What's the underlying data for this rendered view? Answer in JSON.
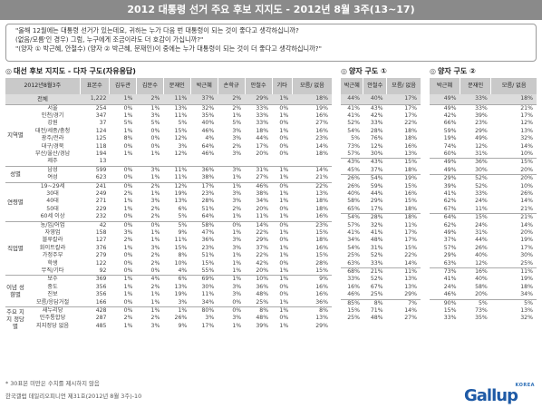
{
  "header": {
    "title": "2012 대통령 선거 주요 후보 지지도 - 2012년 8월 3주(13~17)"
  },
  "question": {
    "line1": "\"올해 12월에는 대통령 선거가 있는데요, 귀하는 누가 다음 번 대통령이 되는 것이 좋다고 생각하십니까?",
    "line2": "(없음/모름'인 경우) 그럼, 누구에게 조금이라도 더 호감이 가십니까?\"",
    "line3": "\"(양자 ① 박근혜, 안철수) (양자 ② 박근혜, 문재인)이 중에는 누가 대통령이 되는 것이 더 좋다고 생각하십니까?\""
  },
  "sections": {
    "multi": "대선 후보 지지도 - 다자 구도(자유응답)",
    "pair1": "양자 구도 ①",
    "pair2": "양자 구도 ②",
    "icon": "◎"
  },
  "table": {
    "corner": "2012년8월3주",
    "n_header": "표본수",
    "multi_headers": [
      "김두관",
      "김문수",
      "문재인",
      "박근혜",
      "손학규",
      "안철수",
      "기타",
      "모름/ 없음"
    ],
    "pair1_headers": [
      "박근혜",
      "안철수",
      "모름/ 없음"
    ],
    "pair2_headers": [
      "박근혜",
      "문재인",
      "모름/ 없음"
    ],
    "total": {
      "label": "전체",
      "n": "1,222",
      "multi": [
        "1%",
        "2%",
        "11%",
        "37%",
        "2%",
        "29%",
        "1%",
        "18%"
      ],
      "p1": [
        "44%",
        "40%",
        "17%"
      ],
      "p2": [
        "49%",
        "33%",
        "18%"
      ]
    },
    "groups": [
      {
        "name": "지역별",
        "rows": [
          {
            "label": "서울",
            "n": "254",
            "multi": [
              "0%",
              "1%",
              "13%",
              "32%",
              "2%",
              "33%",
              "0%",
              "19%"
            ],
            "p1": [
              "41%",
              "43%",
              "17%"
            ],
            "p2": [
              "49%",
              "33%",
              "21%"
            ]
          },
          {
            "label": "인천/경기",
            "n": "347",
            "multi": [
              "1%",
              "3%",
              "11%",
              "35%",
              "1%",
              "33%",
              "1%",
              "16%"
            ],
            "p1": [
              "41%",
              "42%",
              "17%"
            ],
            "p2": [
              "42%",
              "39%",
              "17%"
            ]
          },
          {
            "label": "강원",
            "n": "37",
            "multi": [
              "5%",
              "5%",
              "5%",
              "40%",
              "5%",
              "33%",
              "0%",
              "27%"
            ],
            "p1": [
              "52%",
              "33%",
              "22%"
            ],
            "p2": [
              "66%",
              "23%",
              "12%"
            ]
          },
          {
            "label": "대전/세종/충청",
            "n": "124",
            "multi": [
              "1%",
              "0%",
              "15%",
              "46%",
              "3%",
              "18%",
              "1%",
              "16%"
            ],
            "p1": [
              "54%",
              "28%",
              "18%"
            ],
            "p2": [
              "59%",
              "29%",
              "13%"
            ]
          },
          {
            "label": "광주/전라",
            "n": "125",
            "multi": [
              "8%",
              "0%",
              "12%",
              "4%",
              "3%",
              "44%",
              "0%",
              "23%"
            ],
            "p1": [
              "5%",
              "76%",
              "18%"
            ],
            "p2": [
              "19%",
              "49%",
              "32%"
            ]
          },
          {
            "label": "대구/경북",
            "n": "118",
            "multi": [
              "0%",
              "0%",
              "3%",
              "64%",
              "2%",
              "17%",
              "0%",
              "14%"
            ],
            "p1": [
              "73%",
              "12%",
              "16%"
            ],
            "p2": [
              "74%",
              "12%",
              "14%"
            ]
          },
          {
            "label": "부산/울산/경남",
            "n": "194",
            "multi": [
              "1%",
              "1%",
              "12%",
              "46%",
              "3%",
              "20%",
              "0%",
              "18%"
            ],
            "p1": [
              "57%",
              "30%",
              "13%"
            ],
            "p2": [
              "60%",
              "31%",
              "10%"
            ]
          },
          {
            "label": "제주",
            "n": "13",
            "multi": [
              "",
              "",
              "",
              "",
              "",
              "",
              "",
              ""
            ],
            "p1": [
              "",
              "",
              ""
            ],
            "p2": [
              "",
              "",
              ""
            ]
          }
        ]
      },
      {
        "name": "성별",
        "rows": [
          {
            "label": "남성",
            "n": "599",
            "multi": [
              "0%",
              "3%",
              "11%",
              "36%",
              "3%",
              "31%",
              "1%",
              "14%"
            ],
            "p1": [
              "43%",
              "43%",
              "15%"
            ],
            "p2": [
              "49%",
              "36%",
              "15%"
            ]
          },
          {
            "label": "여성",
            "n": "623",
            "multi": [
              "0%",
              "1%",
              "11%",
              "38%",
              "1%",
              "27%",
              "1%",
              "21%"
            ],
            "p1": [
              "45%",
              "37%",
              "18%"
            ],
            "p2": [
              "49%",
              "30%",
              "20%"
            ]
          }
        ]
      },
      {
        "name": "연령별",
        "rows": [
          {
            "label": "19~29세",
            "n": "241",
            "multi": [
              "0%",
              "2%",
              "12%",
              "17%",
              "1%",
              "46%",
              "0%",
              "22%"
            ],
            "p1": [
              "26%",
              "54%",
              "19%"
            ],
            "p2": [
              "29%",
              "52%",
              "20%"
            ]
          },
          {
            "label": "30대",
            "n": "249",
            "multi": [
              "2%",
              "1%",
              "19%",
              "23%",
              "3%",
              "38%",
              "1%",
              "13%"
            ],
            "p1": [
              "26%",
              "59%",
              "15%"
            ],
            "p2": [
              "39%",
              "52%",
              "10%"
            ]
          },
          {
            "label": "40대",
            "n": "271",
            "multi": [
              "1%",
              "3%",
              "13%",
              "28%",
              "3%",
              "34%",
              "1%",
              "18%"
            ],
            "p1": [
              "40%",
              "44%",
              "16%"
            ],
            "p2": [
              "41%",
              "33%",
              "26%"
            ]
          },
          {
            "label": "50대",
            "n": "229",
            "multi": [
              "1%",
              "2%",
              "6%",
              "51%",
              "2%",
              "20%",
              "0%",
              "18%"
            ],
            "p1": [
              "58%",
              "29%",
              "15%"
            ],
            "p2": [
              "62%",
              "24%",
              "14%"
            ]
          },
          {
            "label": "60세 이상",
            "n": "232",
            "multi": [
              "0%",
              "2%",
              "5%",
              "64%",
              "1%",
              "11%",
              "1%",
              "16%"
            ],
            "p1": [
              "65%",
              "17%",
              "18%"
            ],
            "p2": [
              "67%",
              "11%",
              "21%"
            ]
          }
        ]
      },
      {
        "name": "직업별",
        "rows": [
          {
            "label": "농/임/어업",
            "n": "42",
            "multi": [
              "0%",
              "0%",
              "5%",
              "58%",
              "0%",
              "14%",
              "0%",
              "23%"
            ],
            "p1": [
              "54%",
              "28%",
              "18%"
            ],
            "p2": [
              "64%",
              "15%",
              "21%"
            ]
          },
          {
            "label": "자영업",
            "n": "158",
            "multi": [
              "3%",
              "1%",
              "9%",
              "47%",
              "1%",
              "22%",
              "1%",
              "15%"
            ],
            "p1": [
              "57%",
              "32%",
              "11%"
            ],
            "p2": [
              "62%",
              "24%",
              "14%"
            ]
          },
          {
            "label": "블루칼라",
            "n": "127",
            "multi": [
              "2%",
              "1%",
              "11%",
              "36%",
              "3%",
              "29%",
              "0%",
              "18%"
            ],
            "p1": [
              "41%",
              "41%",
              "17%"
            ],
            "p2": [
              "49%",
              "31%",
              "20%"
            ]
          },
          {
            "label": "화이트칼라",
            "n": "376",
            "multi": [
              "1%",
              "3%",
              "15%",
              "23%",
              "3%",
              "37%",
              "1%",
              "16%"
            ],
            "p1": [
              "34%",
              "48%",
              "17%"
            ],
            "p2": [
              "37%",
              "44%",
              "19%"
            ]
          },
          {
            "label": "가정주부",
            "n": "279",
            "multi": [
              "0%",
              "2%",
              "8%",
              "51%",
              "1%",
              "22%",
              "1%",
              "15%"
            ],
            "p1": [
              "54%",
              "31%",
              "15%"
            ],
            "p2": [
              "57%",
              "26%",
              "17%"
            ]
          },
          {
            "label": "학생",
            "n": "122",
            "multi": [
              "0%",
              "2%",
              "10%",
              "15%",
              "1%",
              "42%",
              "0%",
              "28%"
            ],
            "p1": [
              "25%",
              "52%",
              "22%"
            ],
            "p2": [
              "29%",
              "40%",
              "30%"
            ]
          },
          {
            "label": "무직/기타",
            "n": "92",
            "multi": [
              "0%",
              "0%",
              "4%",
              "55%",
              "1%",
              "20%",
              "1%",
              "15%"
            ],
            "p1": [
              "63%",
              "33%",
              "14%"
            ],
            "p2": [
              "63%",
              "12%",
              "25%"
            ]
          }
        ]
      },
      {
        "name": "이념 성향별",
        "rows": [
          {
            "label": "보수",
            "n": "369",
            "multi": [
              "1%",
              "4%",
              "6%",
              "69%",
              "1%",
              "10%",
              "1%",
              "9%"
            ],
            "p1": [
              "68%",
              "21%",
              "11%"
            ],
            "p2": [
              "73%",
              "16%",
              "11%"
            ]
          },
          {
            "label": "중도",
            "n": "356",
            "multi": [
              "1%",
              "2%",
              "13%",
              "30%",
              "3%",
              "36%",
              "0%",
              "16%"
            ],
            "p1": [
              "33%",
              "52%",
              "13%"
            ],
            "p2": [
              "41%",
              "40%",
              "19%"
            ]
          },
          {
            "label": "진보",
            "n": "356",
            "multi": [
              "1%",
              "1%",
              "19%",
              "11%",
              "3%",
              "48%",
              "0%",
              "16%"
            ],
            "p1": [
              "16%",
              "67%",
              "13%"
            ],
            "p2": [
              "24%",
              "58%",
              "18%"
            ]
          },
          {
            "label": "모름/응답거절",
            "n": "166",
            "multi": [
              "0%",
              "1%",
              "3%",
              "34%",
              "0%",
              "25%",
              "1%",
              "36%"
            ],
            "p1": [
              "46%",
              "25%",
              "29%"
            ],
            "p2": [
              "46%",
              "20%",
              "34%"
            ]
          }
        ]
      },
      {
        "name": "주요 지지 정당별",
        "rows": [
          {
            "label": "새누리당",
            "n": "428",
            "multi": [
              "0%",
              "1%",
              "1%",
              "80%",
              "0%",
              "8%",
              "1%",
              "8%"
            ],
            "p1": [
              "85%",
              "8%",
              "7%"
            ],
            "p2": [
              "90%",
              "5%",
              "5%"
            ]
          },
          {
            "label": "민주통합당",
            "n": "287",
            "multi": [
              "2%",
              "2%",
              "26%",
              "3%",
              "3%",
              "48%",
              "0%",
              "13%"
            ],
            "p1": [
              "15%",
              "71%",
              "14%"
            ],
            "p2": [
              "15%",
              "73%",
              "13%"
            ]
          },
          {
            "label": "지지정당 없음",
            "n": "485",
            "multi": [
              "1%",
              "3%",
              "9%",
              "17%",
              "1%",
              "39%",
              "1%",
              "29%"
            ],
            "p1": [
              "25%",
              "48%",
              "27%"
            ],
            "p2": [
              "33%",
              "35%",
              "32%"
            ]
          }
        ]
      }
    ]
  },
  "footnotes": {
    "note": "* 30표본 미만은 수치를 제시하지 않음",
    "source": "한국갤럽 데일리오피니언 제31호(2012년 8월 3주)-10"
  },
  "logo": {
    "text": "Gallup",
    "sub": "KOREA"
  },
  "colors": {
    "header_bg": "#8a8a8a",
    "table_header_bg": "#c9c9c9",
    "total_row_bg": "#dcdcdc",
    "logo": "#1e5aa6"
  }
}
